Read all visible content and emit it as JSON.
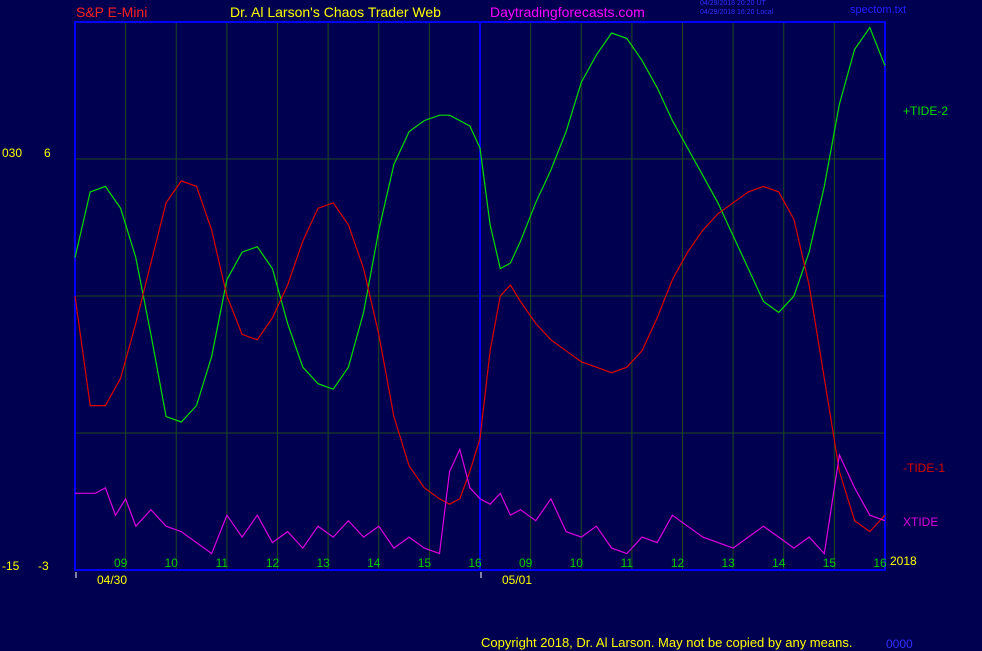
{
  "header": {
    "instrument": "S&P E-Mini",
    "publisher": "Dr. Al Larson's Chaos Trader Web",
    "website": "Daytradingforecasts.com",
    "stamp_line1": "04/29/2018 20:20 UT",
    "stamp_line2": "04/29/2018 16:20 Local",
    "filename": "spectom.txt"
  },
  "footer": {
    "copyright": "Copyright 2018, Dr. Al Larson. May not be copied by any means.",
    "corner": "0000"
  },
  "colors": {
    "background": "#000050",
    "frame": "#0000ff",
    "grid": "#1e4a1e",
    "tide2": "#00dd00",
    "tide1": "#dd0000",
    "xtide": "#dd00dd",
    "axis_text": "#ffff00",
    "hour_text": "#00cc00",
    "instrument": "#ff2020",
    "publisher": "#ffff00",
    "website": "#ff00ff",
    "stamp": "#3030ff",
    "filename": "#2020ff"
  },
  "chart_data": {
    "type": "line",
    "left_axis": {
      "top_labels": [
        "030",
        "6"
      ],
      "bottom_labels": [
        "-15",
        "-3"
      ]
    },
    "year_label": "2018",
    "x_range": [
      0,
      16
    ],
    "y_range": [
      0,
      100
    ],
    "hour_ticks": [
      {
        "x": 1,
        "label": "09"
      },
      {
        "x": 2,
        "label": "10"
      },
      {
        "x": 3,
        "label": "11"
      },
      {
        "x": 4,
        "label": "12"
      },
      {
        "x": 5,
        "label": "13"
      },
      {
        "x": 6,
        "label": "14"
      },
      {
        "x": 7,
        "label": "15"
      },
      {
        "x": 8,
        "label": "16"
      },
      {
        "x": 9,
        "label": "09"
      },
      {
        "x": 10,
        "label": "10"
      },
      {
        "x": 11,
        "label": "11"
      },
      {
        "x": 12,
        "label": "12"
      },
      {
        "x": 13,
        "label": "13"
      },
      {
        "x": 14,
        "label": "14"
      },
      {
        "x": 15,
        "label": "15"
      },
      {
        "x": 16,
        "label": "16"
      }
    ],
    "day_markers": [
      {
        "x": 0,
        "label": "04/30"
      },
      {
        "x": 8,
        "label": "05/01"
      }
    ],
    "series": [
      {
        "name": "+TIDE-2",
        "color": "#00dd00",
        "points": [
          [
            0.0,
            57
          ],
          [
            0.3,
            69
          ],
          [
            0.6,
            70
          ],
          [
            0.9,
            66
          ],
          [
            1.2,
            57
          ],
          [
            1.5,
            43
          ],
          [
            1.8,
            28
          ],
          [
            2.1,
            27
          ],
          [
            2.4,
            30
          ],
          [
            2.7,
            39
          ],
          [
            3.0,
            53
          ],
          [
            3.3,
            58
          ],
          [
            3.6,
            59
          ],
          [
            3.9,
            55
          ],
          [
            4.2,
            45
          ],
          [
            4.5,
            37
          ],
          [
            4.8,
            34
          ],
          [
            5.1,
            33
          ],
          [
            5.4,
            37
          ],
          [
            5.7,
            47
          ],
          [
            6.0,
            62
          ],
          [
            6.3,
            74
          ],
          [
            6.6,
            80
          ],
          [
            6.9,
            82
          ],
          [
            7.2,
            83
          ],
          [
            7.4,
            83
          ],
          [
            7.6,
            82
          ],
          [
            7.8,
            81
          ],
          [
            8.0,
            77
          ],
          [
            8.2,
            63
          ],
          [
            8.4,
            55
          ],
          [
            8.6,
            56
          ],
          [
            8.8,
            60
          ],
          [
            9.1,
            67
          ],
          [
            9.4,
            73
          ],
          [
            9.7,
            80
          ],
          [
            10.0,
            89
          ],
          [
            10.3,
            94
          ],
          [
            10.6,
            98
          ],
          [
            10.9,
            97
          ],
          [
            11.2,
            93
          ],
          [
            11.5,
            88
          ],
          [
            11.8,
            82
          ],
          [
            12.1,
            77
          ],
          [
            12.4,
            72
          ],
          [
            12.7,
            67
          ],
          [
            13.0,
            61
          ],
          [
            13.3,
            55
          ],
          [
            13.6,
            49
          ],
          [
            13.9,
            47
          ],
          [
            14.2,
            50
          ],
          [
            14.5,
            58
          ],
          [
            14.8,
            70
          ],
          [
            15.1,
            85
          ],
          [
            15.4,
            95
          ],
          [
            15.7,
            99
          ],
          [
            16.0,
            92
          ]
        ]
      },
      {
        "name": "-TIDE-1",
        "color": "#dd0000",
        "points": [
          [
            0.0,
            50
          ],
          [
            0.3,
            30
          ],
          [
            0.6,
            30
          ],
          [
            0.9,
            35
          ],
          [
            1.2,
            45
          ],
          [
            1.5,
            56
          ],
          [
            1.8,
            67
          ],
          [
            2.1,
            71
          ],
          [
            2.4,
            70
          ],
          [
            2.7,
            62
          ],
          [
            3.0,
            50
          ],
          [
            3.3,
            43
          ],
          [
            3.6,
            42
          ],
          [
            3.9,
            46
          ],
          [
            4.2,
            52
          ],
          [
            4.5,
            60
          ],
          [
            4.8,
            66
          ],
          [
            5.1,
            67
          ],
          [
            5.4,
            63
          ],
          [
            5.7,
            55
          ],
          [
            6.0,
            43
          ],
          [
            6.3,
            28
          ],
          [
            6.6,
            19
          ],
          [
            6.9,
            15
          ],
          [
            7.2,
            13
          ],
          [
            7.4,
            12
          ],
          [
            7.6,
            13
          ],
          [
            7.8,
            18
          ],
          [
            8.0,
            24
          ],
          [
            8.2,
            40
          ],
          [
            8.4,
            50
          ],
          [
            8.6,
            52
          ],
          [
            8.8,
            49
          ],
          [
            9.1,
            45
          ],
          [
            9.4,
            42
          ],
          [
            9.7,
            40
          ],
          [
            10.0,
            38
          ],
          [
            10.3,
            37
          ],
          [
            10.6,
            36
          ],
          [
            10.9,
            37
          ],
          [
            11.2,
            40
          ],
          [
            11.5,
            46
          ],
          [
            11.8,
            53
          ],
          [
            12.1,
            58
          ],
          [
            12.4,
            62
          ],
          [
            12.7,
            65
          ],
          [
            13.0,
            67
          ],
          [
            13.3,
            69
          ],
          [
            13.6,
            70
          ],
          [
            13.9,
            69
          ],
          [
            14.2,
            64
          ],
          [
            14.5,
            52
          ],
          [
            14.8,
            35
          ],
          [
            15.1,
            18
          ],
          [
            15.4,
            9
          ],
          [
            15.7,
            7
          ],
          [
            16.0,
            10
          ]
        ]
      },
      {
        "name": "XTIDE",
        "color": "#dd00dd",
        "points": [
          [
            0.0,
            14
          ],
          [
            0.4,
            14
          ],
          [
            0.6,
            15
          ],
          [
            0.8,
            10
          ],
          [
            1.0,
            13
          ],
          [
            1.2,
            8
          ],
          [
            1.5,
            11
          ],
          [
            1.8,
            8
          ],
          [
            2.1,
            7
          ],
          [
            2.4,
            5
          ],
          [
            2.7,
            3
          ],
          [
            3.0,
            10
          ],
          [
            3.3,
            6
          ],
          [
            3.6,
            10
          ],
          [
            3.9,
            5
          ],
          [
            4.2,
            7
          ],
          [
            4.5,
            4
          ],
          [
            4.8,
            8
          ],
          [
            5.1,
            6
          ],
          [
            5.4,
            9
          ],
          [
            5.7,
            6
          ],
          [
            6.0,
            8
          ],
          [
            6.3,
            4
          ],
          [
            6.6,
            6
          ],
          [
            6.9,
            4
          ],
          [
            7.2,
            3
          ],
          [
            7.4,
            18
          ],
          [
            7.6,
            22
          ],
          [
            7.8,
            15
          ],
          [
            8.0,
            13
          ],
          [
            8.2,
            12
          ],
          [
            8.4,
            14
          ],
          [
            8.6,
            10
          ],
          [
            8.8,
            11
          ],
          [
            9.1,
            9
          ],
          [
            9.4,
            13
          ],
          [
            9.7,
            7
          ],
          [
            10.0,
            6
          ],
          [
            10.3,
            8
          ],
          [
            10.6,
            4
          ],
          [
            10.9,
            3
          ],
          [
            11.2,
            6
          ],
          [
            11.5,
            5
          ],
          [
            11.8,
            10
          ],
          [
            12.1,
            8
          ],
          [
            12.4,
            6
          ],
          [
            12.7,
            5
          ],
          [
            13.0,
            4
          ],
          [
            13.3,
            6
          ],
          [
            13.6,
            8
          ],
          [
            13.9,
            6
          ],
          [
            14.2,
            4
          ],
          [
            14.5,
            6
          ],
          [
            14.8,
            3
          ],
          [
            15.1,
            21
          ],
          [
            15.4,
            15
          ],
          [
            15.7,
            10
          ],
          [
            16.0,
            9
          ]
        ]
      }
    ]
  }
}
